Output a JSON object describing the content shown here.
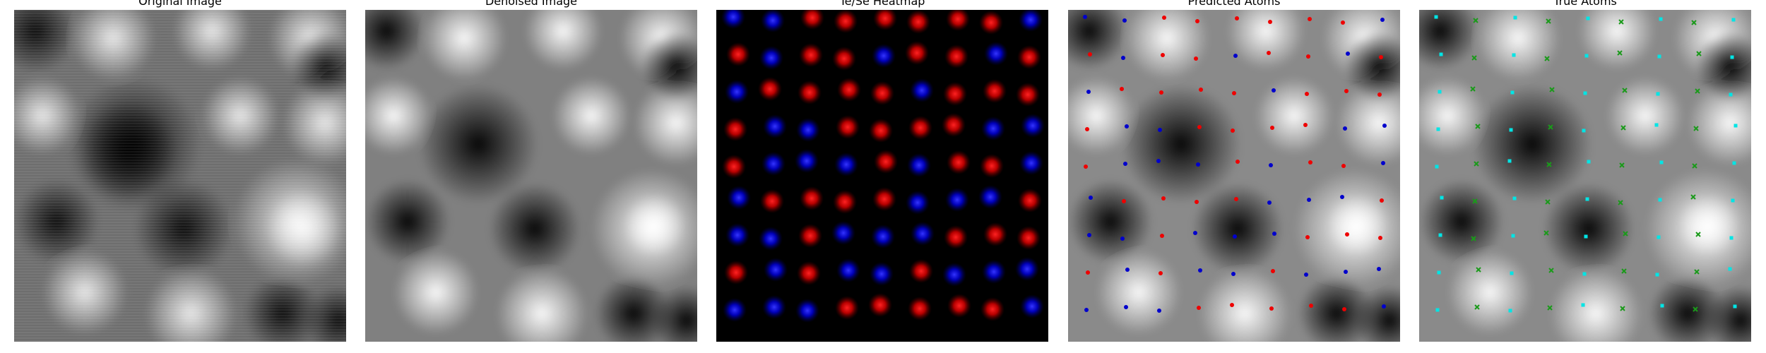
{
  "panels": [
    {
      "id": "original",
      "title": "Original Image"
    },
    {
      "id": "denoised",
      "title": "Denoised Image"
    },
    {
      "id": "heatmap",
      "title": "Te/Se Heatmap"
    },
    {
      "id": "predicted",
      "title": "Predicted Atoms"
    },
    {
      "id": "true",
      "title": "True Atoms"
    }
  ],
  "colors": {
    "te": "#dd1111",
    "se": "#1a1add",
    "predicted_te": "#ee0000",
    "predicted_se": "#0000cc",
    "true_a": "#00e5e5",
    "true_b": "#1a9a1a"
  }
}
